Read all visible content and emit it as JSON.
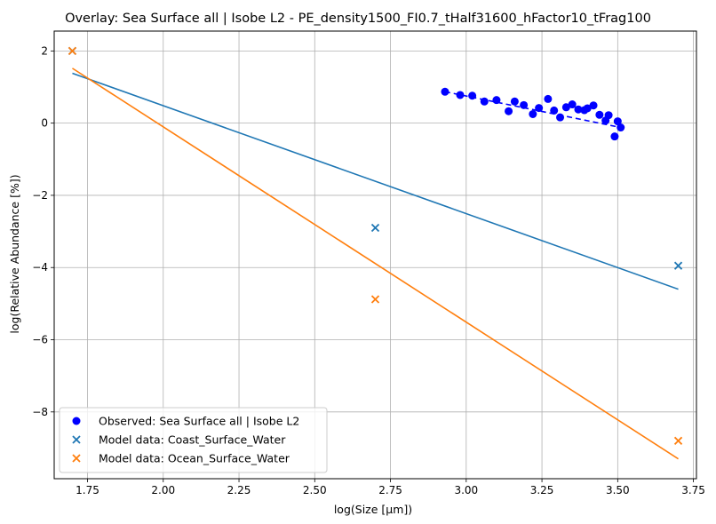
{
  "chart_data": {
    "type": "scatter",
    "title": "Overlay: Sea Surface all | Isobe L2 - PE_density1500_FI0.7_tHalf31600_hFactor10_tFrag100",
    "xlabel": "log(Size [µm])",
    "ylabel": "log(Relative Abundance [%])",
    "xlim": [
      1.64,
      3.76
    ],
    "ylim": [
      -9.85,
      2.55
    ],
    "xticks": [
      "1.75",
      "2.00",
      "2.25",
      "2.50",
      "2.75",
      "3.00",
      "3.25",
      "3.50",
      "3.75"
    ],
    "xtick_values": [
      1.75,
      2.0,
      2.25,
      2.5,
      2.75,
      3.0,
      3.25,
      3.5,
      3.75
    ],
    "yticks": [
      "−8",
      "−6",
      "−4",
      "−2",
      "0",
      "2"
    ],
    "ytick_values": [
      -8,
      -6,
      -4,
      -2,
      0,
      2
    ],
    "grid": true,
    "legend_position": "lower-left",
    "series": [
      {
        "name": "Observed: Sea Surface all | Isobe L2",
        "kind": "scatter",
        "marker": "circle",
        "color": "#0000ff",
        "points": [
          [
            2.93,
            0.87
          ],
          [
            2.98,
            0.78
          ],
          [
            3.02,
            0.76
          ],
          [
            3.06,
            0.6
          ],
          [
            3.1,
            0.64
          ],
          [
            3.14,
            0.33
          ],
          [
            3.16,
            0.6
          ],
          [
            3.19,
            0.5
          ],
          [
            3.22,
            0.25
          ],
          [
            3.24,
            0.42
          ],
          [
            3.27,
            0.67
          ],
          [
            3.29,
            0.35
          ],
          [
            3.31,
            0.16
          ],
          [
            3.33,
            0.44
          ],
          [
            3.35,
            0.52
          ],
          [
            3.37,
            0.38
          ],
          [
            3.39,
            0.36
          ],
          [
            3.4,
            0.41
          ],
          [
            3.42,
            0.49
          ],
          [
            3.44,
            0.23
          ],
          [
            3.46,
            0.07
          ],
          [
            3.47,
            0.22
          ],
          [
            3.49,
            -0.37
          ],
          [
            3.5,
            0.05
          ],
          [
            3.51,
            -0.12
          ]
        ],
        "trend": [
          [
            2.93,
            0.87
          ],
          [
            3.51,
            -0.12
          ]
        ]
      },
      {
        "name": "Model data: Coast_Surface_Water",
        "kind": "scatter",
        "marker": "x",
        "color": "#1f77b4",
        "points": [
          [
            1.7,
            2.0
          ],
          [
            2.7,
            -2.9
          ],
          [
            3.7,
            -3.95
          ]
        ],
        "fit_line": [
          [
            1.7,
            1.38
          ],
          [
            3.7,
            -4.6
          ]
        ]
      },
      {
        "name": "Model data: Ocean_Surface_Water",
        "kind": "scatter",
        "marker": "x",
        "color": "#ff7f0e",
        "points": [
          [
            1.7,
            2.0
          ],
          [
            2.7,
            -4.88
          ],
          [
            3.7,
            -8.8
          ]
        ],
        "fit_line": [
          [
            1.7,
            1.52
          ],
          [
            3.7,
            -9.3
          ]
        ]
      }
    ]
  }
}
